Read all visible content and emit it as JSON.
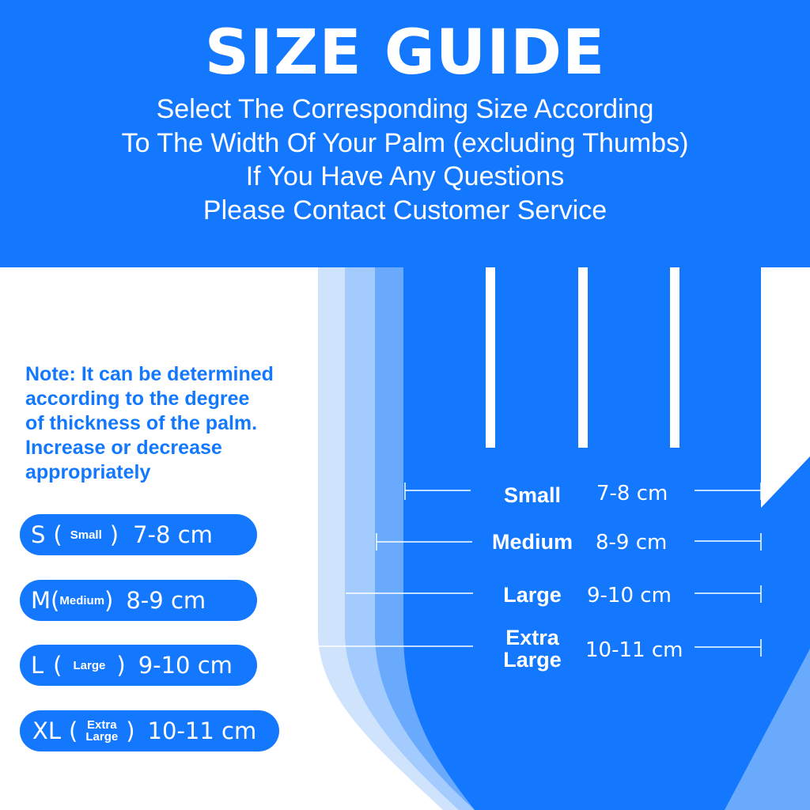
{
  "header": {
    "title": "SIZE GUIDE",
    "lines": [
      "Select The Corresponding Size According",
      "To The Width Of Your Palm (excluding Thumbs)",
      "If You Have Any Questions",
      "Please Contact Customer Service"
    ]
  },
  "note": {
    "lines": [
      "Note: It can be determined",
      "according to the degree",
      "of thickness of the palm.",
      "Increase or decrease",
      "appropriately"
    ]
  },
  "sizes": [
    {
      "code": "S",
      "name": "Small",
      "range": "7-8 cm"
    },
    {
      "code": "M",
      "name": "Medium",
      "range": "8-9 cm"
    },
    {
      "code": "L",
      "name": "Large",
      "range": "9-10 cm"
    },
    {
      "code": "XL",
      "name_line1": "Extra",
      "name_line2": "Large",
      "range": "10-11 cm"
    }
  ],
  "measures": [
    {
      "label": "Small",
      "range": "7-8 cm"
    },
    {
      "label": "Medium",
      "range": "8-9 cm"
    },
    {
      "label": "Large",
      "range": "9-10 cm"
    },
    {
      "label_line1": "Extra",
      "label_line2": "Large",
      "range": "10-11 cm"
    }
  ],
  "colors": {
    "brand": "#1478fe",
    "layer1": "#cfe3fd",
    "layer2": "#a3cbfd",
    "layer3": "#6aaafd"
  }
}
